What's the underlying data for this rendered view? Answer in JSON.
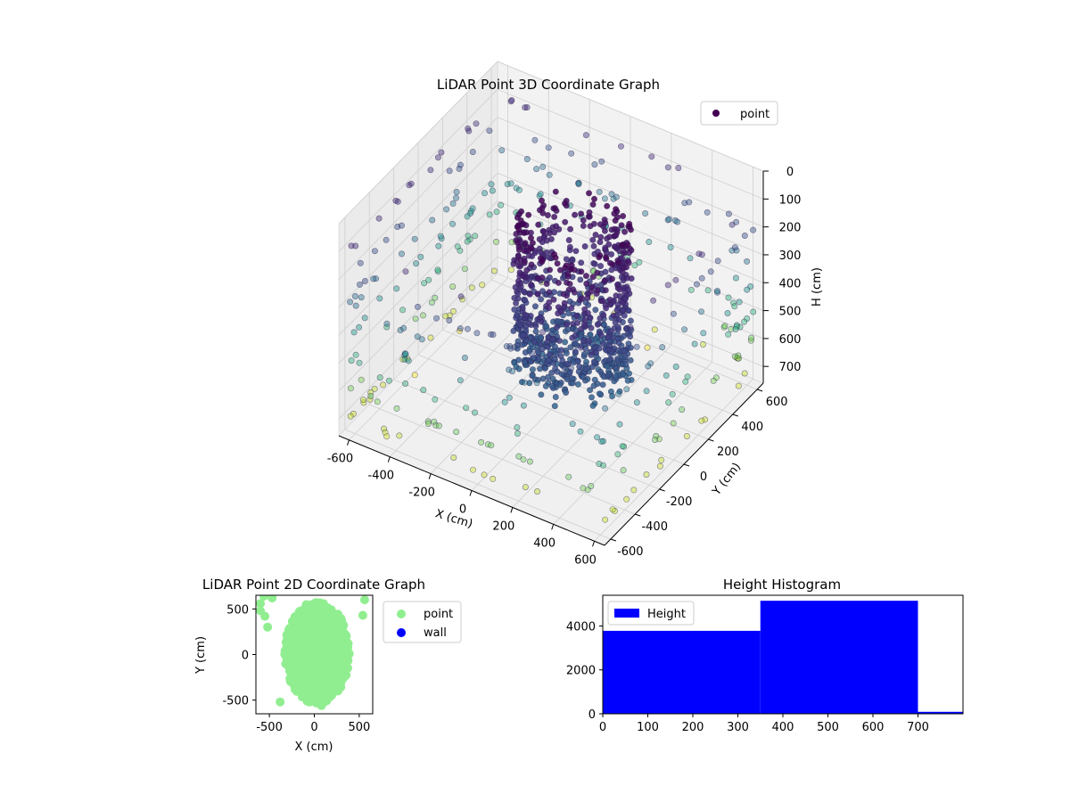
{
  "colors": {
    "wall": "#0000ff",
    "histogram": "#0000ff",
    "point_2d": "#90ee90",
    "colormap": "viridis",
    "point_3d_legend": "#440154"
  },
  "chart_data": [
    {
      "type": "scatter",
      "title": "LiDAR Point 3D Coordinate Graph",
      "xlabel": "X (cm)",
      "ylabel": "Y (cm)",
      "zlabel": "H (cm)",
      "z_inverted": true,
      "xlim": [
        -650,
        650
      ],
      "ylim": [
        -650,
        650
      ],
      "zlim": [
        0,
        760
      ],
      "x_ticks": [
        -600,
        -400,
        -200,
        0,
        200,
        400,
        600
      ],
      "y_ticks": [
        -600,
        -400,
        -200,
        0,
        200,
        400,
        600
      ],
      "z_ticks": [
        0,
        100,
        200,
        300,
        400,
        500,
        600,
        700
      ],
      "color_by": "height (viridis)",
      "legend": {
        "entries": [
          "point"
        ],
        "location": "top-right"
      },
      "clusters": [
        {
          "shape": "ring",
          "center": [
            60,
            80
          ],
          "radius": 230,
          "h_range": [
            120,
            650
          ],
          "count": 700
        },
        {
          "shape": "disc",
          "center": [
            60,
            80
          ],
          "radius": 200,
          "h_range": [
            520,
            640
          ],
          "count": 150
        },
        {
          "shape": "perimeter",
          "half_size": 620,
          "h_range": [
            80,
            760
          ],
          "count": 360
        }
      ]
    },
    {
      "type": "scatter",
      "title": "LiDAR Point 2D Coordinate Graph",
      "xlabel": "X (cm)",
      "ylabel": "Y (cm)",
      "xlim": [
        -650,
        650
      ],
      "ylim": [
        -650,
        650
      ],
      "x_ticks": [
        -500,
        0,
        500
      ],
      "y_ticks": [
        -500,
        0,
        500
      ],
      "legend": {
        "entries": [
          "point",
          "wall"
        ],
        "location": "outside-right"
      },
      "series": [
        {
          "name": "point",
          "cloud": {
            "center": [
              30,
              20
            ],
            "radius_x": 360,
            "radius_y": 560,
            "count": 900
          },
          "stray_points": [
            [
              -600,
              480
            ],
            [
              -550,
              420
            ],
            [
              540,
              430
            ],
            [
              -470,
              620
            ],
            [
              560,
              600
            ],
            [
              -380,
              -520
            ],
            [
              80,
              -560
            ],
            [
              -560,
              640
            ],
            [
              -520,
              300
            ],
            [
              -600,
              560
            ]
          ]
        },
        {
          "name": "wall",
          "points": []
        }
      ]
    },
    {
      "type": "bar",
      "title": "Height Histogram",
      "bins": [
        [
          0,
          350
        ],
        [
          350,
          700
        ],
        [
          700,
          800
        ]
      ],
      "values": [
        3780,
        5150,
        90
      ],
      "xlim": [
        0,
        800
      ],
      "ylim": [
        0,
        5400
      ],
      "x_ticks": [
        0,
        100,
        200,
        300,
        400,
        500,
        600,
        700
      ],
      "y_ticks": [
        0,
        2000,
        4000
      ],
      "legend": {
        "entries": [
          "Height"
        ],
        "location": "top-left"
      }
    }
  ]
}
